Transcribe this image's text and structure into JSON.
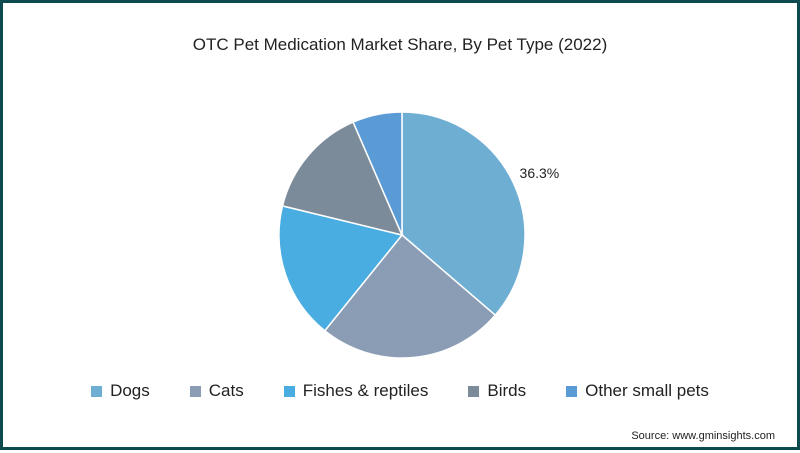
{
  "chart_data": {
    "type": "pie",
    "title": "OTC Pet Medication Market Share, By Pet Type (2022)",
    "slices": [
      {
        "label": "Dogs",
        "value": 36.3,
        "color": "#6eaed3",
        "data_label": "36.3%"
      },
      {
        "label": "Cats",
        "value": 24.5,
        "color": "#8a9db5",
        "data_label": ""
      },
      {
        "label": "Fishes & reptiles",
        "value": 18.0,
        "color": "#49ade2",
        "data_label": ""
      },
      {
        "label": "Birds",
        "value": 14.7,
        "color": "#7c8b9a",
        "data_label": ""
      },
      {
        "label": "Other small pets",
        "value": 6.5,
        "color": "#5b9bd5",
        "data_label": ""
      }
    ],
    "start_angle_deg": 0,
    "direction": "clockwise",
    "legend_position": "bottom"
  },
  "source": "Source: www.gminsights.com",
  "colors": {
    "frame_border": "#0c4a4f",
    "slice_separator": "#ffffff"
  }
}
